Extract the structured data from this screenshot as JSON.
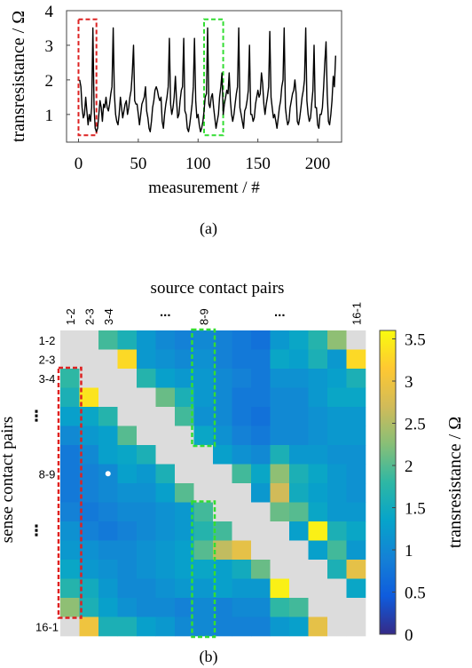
{
  "chart_data": [
    {
      "type": "line",
      "xlabel": "measurement / #",
      "ylabel": "transresistance / Ω",
      "xlim": [
        -10,
        220
      ],
      "ylim": [
        0.2,
        4
      ],
      "xticks": [
        "0",
        "50",
        "100",
        "150",
        "200"
      ],
      "yticks": [
        "1",
        "2",
        "3",
        "4"
      ],
      "grid": false,
      "highlights": [
        {
          "from": 0,
          "to": 15,
          "color": "#dd2222",
          "style": "dashed"
        },
        {
          "from": 105,
          "to": 121,
          "color": "#33dd33",
          "style": "dashed"
        }
      ],
      "x_start": 1,
      "y": [
        2.0,
        1.8,
        1.2,
        0.9,
        1.0,
        1.5,
        1.1,
        0.7,
        1.0,
        0.8,
        1.2,
        3.5,
        1.2,
        0.6,
        0.5,
        0.6,
        1.0,
        1.4,
        1.2,
        0.8,
        1.3,
        1.2,
        1.5,
        1.2,
        1.1,
        1.3,
        1.6,
        1.8,
        3.5,
        1.6,
        1.0,
        0.8,
        0.7,
        1.0,
        1.5,
        1.2,
        0.9,
        1.1,
        1.3,
        1.4,
        1.0,
        1.2,
        1.5,
        1.7,
        2.2,
        3.0,
        1.4,
        1.3,
        1.3,
        1.0,
        0.7,
        1.0,
        1.3,
        1.4,
        1.5,
        1.8,
        1.1,
        0.9,
        0.6,
        0.5,
        0.8,
        1.2,
        1.4,
        1.7,
        1.8,
        1.7,
        1.5,
        1.4,
        1.5,
        0.8,
        0.6,
        1.0,
        1.3,
        1.5,
        1.8,
        3.2,
        1.3,
        1.0,
        1.2,
        1.5,
        2.1,
        1.4,
        0.9,
        1.0,
        1.4,
        1.7,
        1.8,
        3.2,
        1.1,
        1.0,
        0.6,
        0.5,
        0.7,
        1.0,
        1.3,
        1.8,
        3.2,
        1.4,
        0.9,
        1.0,
        0.7,
        0.5,
        0.6,
        0.8,
        1.1,
        1.5,
        1.6,
        3.5,
        1.3,
        1.2,
        1.5,
        1.6,
        1.2,
        0.9,
        0.6,
        0.8,
        1.0,
        1.5,
        1.8,
        2.2,
        1.0,
        1.3,
        1.5,
        1.7,
        1.6,
        2.2,
        1.4,
        1.0,
        0.8,
        1.0,
        1.3,
        1.6,
        1.8,
        3.5,
        1.2,
        1.0,
        0.8,
        0.6,
        1.1,
        1.2,
        1.4,
        1.7,
        3.0,
        1.0,
        1.0,
        0.8,
        0.9,
        1.3,
        1.5,
        1.7,
        1.5,
        1.6,
        2.2,
        1.9,
        1.3,
        1.0,
        1.3,
        1.5,
        1.8,
        3.4,
        1.5,
        1.2,
        0.9,
        1.0,
        0.8,
        0.6,
        0.9,
        1.2,
        1.4,
        1.8,
        2.0,
        3.5,
        1.2,
        0.9,
        0.7,
        0.8,
        1.2,
        1.4,
        1.6,
        1.7,
        2.0,
        1.6,
        0.8,
        0.7,
        0.9,
        1.2,
        1.5,
        1.7,
        2.0,
        3.5,
        1.4,
        1.0,
        0.8,
        0.9,
        1.3,
        1.7,
        3.0,
        1.2,
        1.2,
        0.7,
        0.6,
        1.0,
        1.0,
        1.2,
        1.8,
        2.5,
        3.1,
        1.6,
        0.8,
        0.7,
        1.0,
        1.4,
        2.1,
        1.8,
        2.7
      ]
    },
    {
      "type": "heatmap",
      "title": "source contact pairs",
      "ylabel": "sense contact pairs",
      "colorbar_label": "transresistance / Ω",
      "colorbar_ticks": [
        "0",
        "0.5",
        "1",
        "1.5",
        "2",
        "2.5",
        "3",
        "3.5"
      ],
      "vmin": 0,
      "vmax": 3.6,
      "x_labels": [
        "1-2",
        "2-3",
        "3-4",
        "",
        "",
        "...",
        "",
        "8-9",
        "",
        "",
        "",
        "...",
        "",
        "",
        "",
        "16-1"
      ],
      "y_labels": [
        "1-2",
        "2-3",
        "3-4",
        "",
        "⋮",
        "",
        "",
        "8-9",
        "",
        "",
        "⋮",
        "",
        "",
        "",
        "",
        "16-1"
      ],
      "highlights": [
        {
          "col": 0,
          "rows": [
            2,
            14
          ],
          "color": "#dd2222",
          "style": "dashed"
        },
        {
          "col": 7,
          "rows": [
            0,
            5
          ],
          "color": "#33dd33",
          "style": "dashed"
        },
        {
          "col": 7,
          "rows": [
            9,
            15
          ],
          "color": "#33dd33",
          "style": "dashed"
        }
      ],
      "marker": {
        "row": 7,
        "col": 2,
        "color": "#ffffff"
      },
      "null_color": "#dcdcdc",
      "matrix": [
        [
          null,
          null,
          1.9,
          1.6,
          1.2,
          1.0,
          0.9,
          1.0,
          0.9,
          0.8,
          0.7,
          1.2,
          1.4,
          1.7,
          2.3,
          null
        ],
        [
          null,
          null,
          null,
          3.3,
          1.2,
          1.1,
          1.0,
          1.1,
          0.9,
          0.8,
          0.8,
          1.4,
          1.3,
          1.6,
          1.2,
          3.3
        ],
        [
          1.8,
          null,
          null,
          null,
          1.7,
          1.3,
          1.2,
          1.2,
          1.0,
          0.9,
          0.8,
          1.1,
          1.1,
          1.2,
          1.3,
          1.6
        ],
        [
          1.6,
          3.4,
          null,
          null,
          null,
          2.1,
          1.6,
          1.2,
          1.0,
          0.8,
          0.8,
          1.0,
          1.0,
          1.2,
          1.4,
          1.4
        ],
        [
          1.3,
          1.4,
          1.7,
          null,
          null,
          null,
          1.9,
          1.1,
          1.0,
          0.8,
          0.7,
          1.0,
          1.0,
          1.1,
          1.2,
          1.2
        ],
        [
          1.0,
          1.2,
          1.3,
          2.0,
          null,
          null,
          null,
          1.4,
          1.1,
          0.9,
          0.8,
          1.0,
          1.0,
          1.1,
          1.2,
          1.2
        ],
        [
          0.8,
          1.0,
          1.3,
          1.4,
          1.6,
          null,
          null,
          null,
          1.3,
          1.1,
          1.0,
          1.6,
          1.2,
          1.2,
          1.1,
          1.1
        ],
        [
          0.8,
          0.9,
          1.0,
          1.3,
          1.2,
          1.6,
          null,
          null,
          null,
          1.9,
          1.4,
          2.3,
          1.6,
          1.4,
          1.2,
          1.1
        ],
        [
          0.8,
          0.9,
          1.0,
          1.1,
          1.1,
          1.3,
          2.0,
          null,
          null,
          null,
          1.2,
          2.7,
          1.5,
          1.3,
          1.2,
          1.1
        ],
        [
          0.9,
          0.8,
          0.9,
          1.0,
          1.0,
          1.1,
          1.2,
          1.9,
          null,
          null,
          null,
          2.1,
          2.0,
          1.4,
          1.2,
          1.2
        ],
        [
          1.1,
          0.9,
          0.8,
          0.9,
          1.0,
          1.1,
          1.2,
          1.7,
          1.9,
          null,
          null,
          null,
          1.3,
          3.5,
          1.6,
          1.4
        ],
        [
          1.2,
          1.1,
          1.0,
          1.0,
          1.1,
          1.2,
          1.3,
          2.0,
          2.6,
          2.9,
          null,
          null,
          null,
          1.3,
          1.9,
          1.2
        ],
        [
          1.4,
          1.2,
          1.1,
          1.0,
          1.1,
          1.2,
          1.3,
          1.4,
          1.3,
          1.5,
          2.1,
          null,
          null,
          null,
          1.6,
          2.9
        ],
        [
          1.7,
          1.5,
          1.2,
          1.0,
          1.0,
          1.1,
          1.2,
          1.2,
          1.3,
          1.2,
          1.2,
          3.5,
          null,
          null,
          null,
          1.4
        ],
        [
          2.3,
          1.6,
          1.3,
          1.1,
          1.0,
          1.0,
          0.9,
          1.0,
          0.9,
          1.0,
          1.0,
          1.8,
          1.9,
          null,
          null,
          null
        ],
        [
          null,
          3.0,
          1.6,
          1.6,
          1.3,
          1.2,
          1.0,
          1.0,
          0.9,
          0.9,
          0.9,
          1.2,
          1.3,
          2.9,
          null,
          null
        ]
      ]
    }
  ],
  "captions": {
    "a": "(a)",
    "b": "(b)"
  }
}
